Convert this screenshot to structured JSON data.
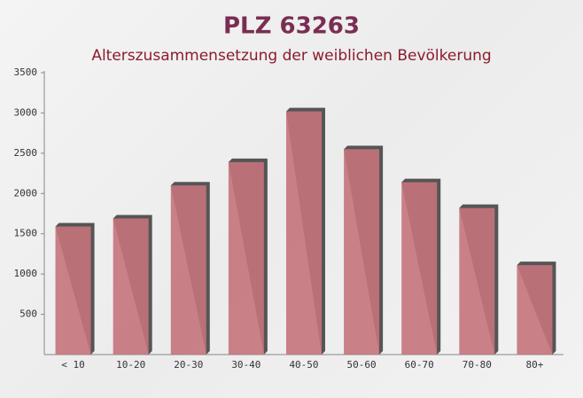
{
  "chart_data": {
    "type": "bar",
    "title": "PLZ 63263",
    "subtitle": "Alterszusammensetzung der weiblichen Bevölkerung",
    "categories": [
      "< 10",
      "10-20",
      "20-30",
      "30-40",
      "40-50",
      "50-60",
      "60-70",
      "70-80",
      "80+"
    ],
    "values": [
      1590,
      1690,
      2100,
      2390,
      3020,
      2550,
      2140,
      1820,
      1110
    ],
    "color": "#c4737b",
    "ylim": [
      0,
      3500
    ],
    "yticks": [
      500,
      1000,
      1500,
      2000,
      2500,
      3000,
      3500
    ],
    "grid": false
  }
}
